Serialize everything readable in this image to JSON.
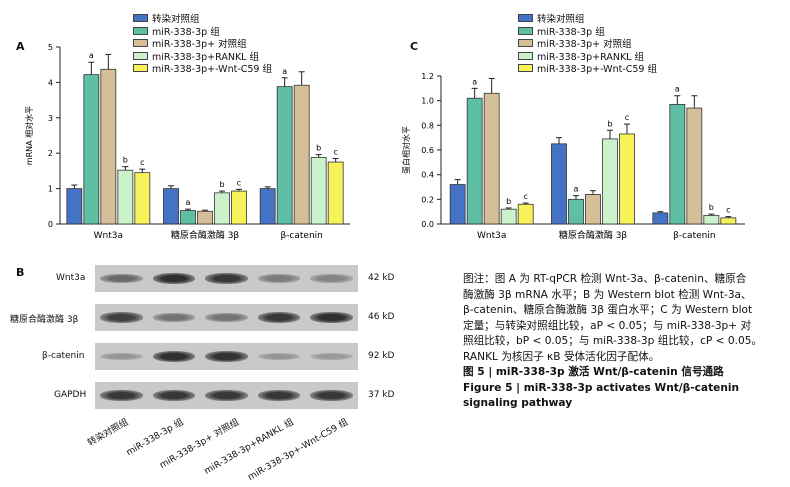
{
  "legend": [
    {
      "label": "转染对照组",
      "color": "#4472c4"
    },
    {
      "label": "miR-338-3p 组",
      "color": "#5fbfa4"
    },
    {
      "label": "miR-338-3p+ 对照组",
      "color": "#d5bf99"
    },
    {
      "label": "miR-338-3p+RANKL 组",
      "color": "#ccf2cc"
    },
    {
      "label": "miR-338-3p+-Wnt-C59 组",
      "color": "#f7f25a"
    }
  ],
  "chart_data": [
    {
      "panel": "A",
      "type": "bar",
      "categories": [
        "Wnt3a",
        "糖原合酶激酶 3β",
        "β-catenin"
      ],
      "ylabel": "mRNA 相对水平",
      "ylim": [
        0,
        5
      ],
      "yticks": [
        0,
        1,
        2,
        3,
        4,
        5
      ],
      "series": [
        {
          "name": "转染对照组",
          "values": [
            1.0,
            1.0,
            1.0
          ],
          "errors": [
            0.1,
            0.08,
            0.05
          ],
          "marks": [
            "",
            "",
            ""
          ]
        },
        {
          "name": "miR-338-3p 组",
          "values": [
            4.22,
            0.38,
            3.88
          ],
          "errors": [
            0.35,
            0.04,
            0.25
          ],
          "marks": [
            "a",
            "a",
            "a"
          ]
        },
        {
          "name": "miR-338-3p+ 对照组",
          "values": [
            4.37,
            0.36,
            3.92
          ],
          "errors": [
            0.42,
            0.03,
            0.38
          ],
          "marks": [
            "",
            "",
            ""
          ]
        },
        {
          "name": "miR-338-3p+RANKL 组",
          "values": [
            1.52,
            0.88,
            1.88
          ],
          "errors": [
            0.1,
            0.05,
            0.08
          ],
          "marks": [
            "b",
            "b",
            "b"
          ]
        },
        {
          "name": "miR-338-3p+-Wnt-C59 组",
          "values": [
            1.45,
            0.93,
            1.75
          ],
          "errors": [
            0.1,
            0.05,
            0.1
          ],
          "marks": [
            "c",
            "c",
            "c"
          ]
        }
      ]
    },
    {
      "panel": "C",
      "type": "bar",
      "categories": [
        "Wnt3a",
        "糖原合酶激酶 3β",
        "β-catenin"
      ],
      "ylabel": "蛋白相对水平",
      "ylim": [
        0,
        1.2
      ],
      "yticks": [
        0.0,
        0.2,
        0.4,
        0.6,
        0.8,
        1.0,
        1.2
      ],
      "series": [
        {
          "name": "转染对照组",
          "values": [
            0.32,
            0.65,
            0.09
          ],
          "errors": [
            0.04,
            0.05,
            0.01
          ],
          "marks": [
            "",
            "",
            ""
          ]
        },
        {
          "name": "miR-338-3p 组",
          "values": [
            1.02,
            0.2,
            0.97
          ],
          "errors": [
            0.08,
            0.03,
            0.07
          ],
          "marks": [
            "a",
            "a",
            "a"
          ]
        },
        {
          "name": "miR-338-3p+ 对照组",
          "values": [
            1.06,
            0.24,
            0.94
          ],
          "errors": [
            0.12,
            0.03,
            0.1
          ],
          "marks": [
            "",
            "",
            ""
          ]
        },
        {
          "name": "miR-338-3p+RANKL 组",
          "values": [
            0.12,
            0.69,
            0.07
          ],
          "errors": [
            0.01,
            0.07,
            0.01
          ],
          "marks": [
            "b",
            "b",
            "b"
          ]
        },
        {
          "name": "miR-338-3p+-Wnt-C59 组",
          "values": [
            0.16,
            0.73,
            0.05
          ],
          "errors": [
            0.01,
            0.08,
            0.01
          ],
          "marks": [
            "c",
            "c",
            "c"
          ]
        }
      ]
    }
  ],
  "panels": {
    "a": "A",
    "b": "B",
    "c": "C"
  },
  "blot": {
    "rows": [
      {
        "label": "Wnt3a",
        "kd": "42 kD",
        "intensity": [
          0.55,
          0.9,
          0.85,
          0.45,
          0.4
        ]
      },
      {
        "label": "糖原合酶激酶 3β",
        "kd": "46 kD",
        "intensity": [
          0.8,
          0.5,
          0.5,
          0.85,
          0.9
        ]
      },
      {
        "label": "β-catenin",
        "kd": "92 kD",
        "intensity": [
          0.3,
          0.9,
          0.88,
          0.3,
          0.28
        ]
      },
      {
        "label": "GAPDH",
        "kd": "37 kD",
        "intensity": [
          0.85,
          0.85,
          0.85,
          0.85,
          0.85
        ]
      }
    ],
    "lanes": [
      "转染对照组",
      "miR-338-3p 组",
      "miR-338-3p+ 对照组",
      "miR-338-3p+RANKL 组",
      "miR-338-3p+-Wnt-C59 组"
    ]
  },
  "caption": {
    "line1": "图注：图 A 为 RT-qPCR 检测 Wnt-3a、β-catenin、糖原合",
    "line2": "酶激酶 3β mRNA 水平；B 为 Western blot 检测 Wnt-3a、",
    "line3": "β-catenin、糖原合酶激酶 3β 蛋白水平；C 为 Western blot",
    "line4": "定量；与转染对照组比较，aP < 0.05；与 miR-338-3p+ 对",
    "line5": "照组比较，bP < 0.05；与 miR-338-3p 组比较，cP < 0.05。",
    "line6": "RANKL 为核因子 κB 受体活化因子配体。",
    "title_cn": "图 5 | miR-338-3p 激活 Wnt/β-catenin 信号通路",
    "title_en": "Figure 5 | miR-338-3p activates Wnt/β-catenin signaling pathway"
  }
}
